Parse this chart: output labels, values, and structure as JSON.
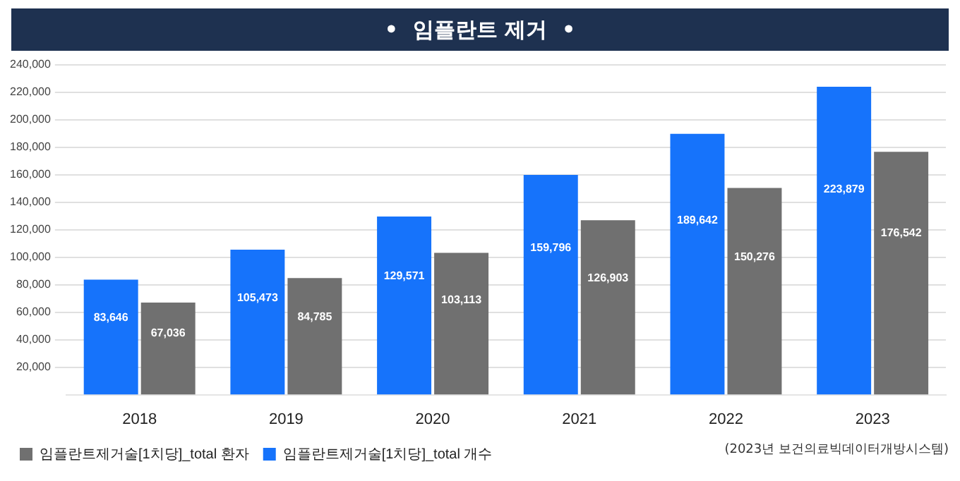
{
  "chart_data": {
    "type": "bar",
    "title": "•  임플란트 제거  •",
    "categories": [
      "2018",
      "2019",
      "2020",
      "2021",
      "2022",
      "2023"
    ],
    "series": [
      {
        "name": "임플란트제거술[1치당]_total 개수",
        "color": "#1673fb",
        "values": [
          83646,
          105473,
          129571,
          159796,
          189642,
          223879
        ],
        "value_labels": [
          "83,646",
          "105,473",
          "129,571",
          "159,796",
          "189,642",
          "223,879"
        ]
      },
      {
        "name": "임플란트제거술[1치당]_total 환자",
        "color": "#707070",
        "values": [
          67036,
          84785,
          103113,
          126903,
          150276,
          176542
        ],
        "value_labels": [
          "67,036",
          "84,785",
          "103,113",
          "126,903",
          "150,276",
          "176,542"
        ]
      }
    ],
    "ylim": [
      0,
      240000
    ],
    "yticks": [
      {
        "value": 20000,
        "label": "20,000"
      },
      {
        "value": 40000,
        "label": "40,000"
      },
      {
        "value": 60000,
        "label": "60,000"
      },
      {
        "value": 80000,
        "label": "80,000"
      },
      {
        "value": 100000,
        "label": "100,000"
      },
      {
        "value": 120000,
        "label": "120,000"
      },
      {
        "value": 140000,
        "label": "140,000"
      },
      {
        "value": 160000,
        "label": "160,000"
      },
      {
        "value": 180000,
        "label": "180,000"
      },
      {
        "value": 200000,
        "label": "200,000"
      },
      {
        "value": 220000,
        "label": "220,000"
      },
      {
        "value": 240000,
        "label": "240,000"
      }
    ],
    "grid": "y",
    "legend": "bottom left",
    "annotations": [
      "(2023년 보건의료빅데이터개방시스템)"
    ]
  }
}
